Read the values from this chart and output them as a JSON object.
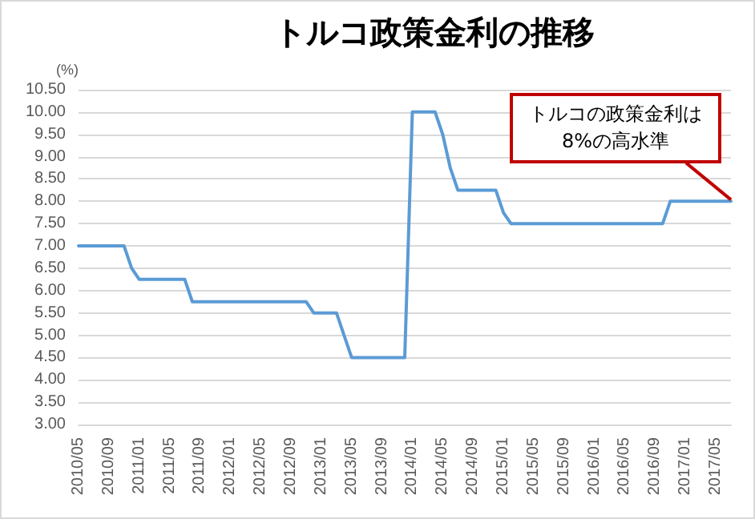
{
  "chart_data": {
    "type": "line",
    "title": "トルコ政策金利の推移",
    "ylabel": "(%)",
    "categories": [
      "2010/05",
      null,
      null,
      null,
      "2010/09",
      null,
      null,
      null,
      "2011/01",
      null,
      null,
      null,
      "2011/05",
      null,
      null,
      null,
      "2011/09",
      null,
      null,
      null,
      "2012/01",
      null,
      null,
      null,
      "2012/05",
      null,
      null,
      null,
      "2012/09",
      null,
      null,
      null,
      "2013/01",
      null,
      null,
      null,
      "2013/05",
      null,
      null,
      null,
      "2013/09",
      null,
      null,
      null,
      "2014/01",
      null,
      null,
      null,
      "2014/05",
      null,
      null,
      null,
      "2014/09",
      null,
      null,
      null,
      "2015/01",
      null,
      null,
      null,
      "2015/05",
      null,
      null,
      null,
      "2015/09",
      null,
      null,
      null,
      "2016/01",
      null,
      null,
      null,
      "2016/05",
      null,
      null,
      null,
      "2016/09",
      null,
      null,
      null,
      "2017/01",
      null,
      null,
      null,
      "2017/05",
      null,
      null
    ],
    "series": [
      {
        "color": "#5b9bd5",
        "values": [
          7,
          7,
          7,
          7,
          7,
          7,
          7,
          6.5,
          6.25,
          6.25,
          6.25,
          6.25,
          6.25,
          6.25,
          6.25,
          5.75,
          5.75,
          5.75,
          5.75,
          5.75,
          5.75,
          5.75,
          5.75,
          5.75,
          5.75,
          5.75,
          5.75,
          5.75,
          5.75,
          5.75,
          5.75,
          5.5,
          5.5,
          5.5,
          5.5,
          5,
          4.5,
          4.5,
          4.5,
          4.5,
          4.5,
          4.5,
          4.5,
          4.5,
          10,
          10,
          10,
          10,
          9.5,
          8.75,
          8.25,
          8.25,
          8.25,
          8.25,
          8.25,
          8.25,
          7.75,
          7.5,
          7.5,
          7.5,
          7.5,
          7.5,
          7.5,
          7.5,
          7.5,
          7.5,
          7.5,
          7.5,
          7.5,
          7.5,
          7.5,
          7.5,
          7.5,
          7.5,
          7.5,
          7.5,
          7.5,
          7.5,
          8,
          8,
          8,
          8,
          8,
          8,
          8,
          8,
          8
        ]
      }
    ],
    "ylim": [
      3,
      10.5
    ],
    "yticks": [
      {
        "value": 3,
        "label": "3.00"
      },
      {
        "value": 3.5,
        "label": "3.50"
      },
      {
        "value": 4,
        "label": "4.00"
      },
      {
        "value": 4.5,
        "label": "4.50"
      },
      {
        "value": 5,
        "label": "5.00"
      },
      {
        "value": 5.5,
        "label": "5.50"
      },
      {
        "value": 6,
        "label": "6.00"
      },
      {
        "value": 6.5,
        "label": "6.50"
      },
      {
        "value": 7,
        "label": "7.00"
      },
      {
        "value": 7.5,
        "label": "7.50"
      },
      {
        "value": 8,
        "label": "8.00"
      },
      {
        "value": 8.5,
        "label": "8.50"
      },
      {
        "value": 9,
        "label": "9.00"
      },
      {
        "value": 9.5,
        "label": "9.50"
      },
      {
        "value": 10,
        "label": "10.00"
      },
      {
        "value": 10.5,
        "label": "10.50"
      }
    ],
    "grid": "y",
    "marker": "none",
    "line_style": "solid",
    "annotations": [
      "トルコの政策金利は\n8%の高水準"
    ]
  }
}
